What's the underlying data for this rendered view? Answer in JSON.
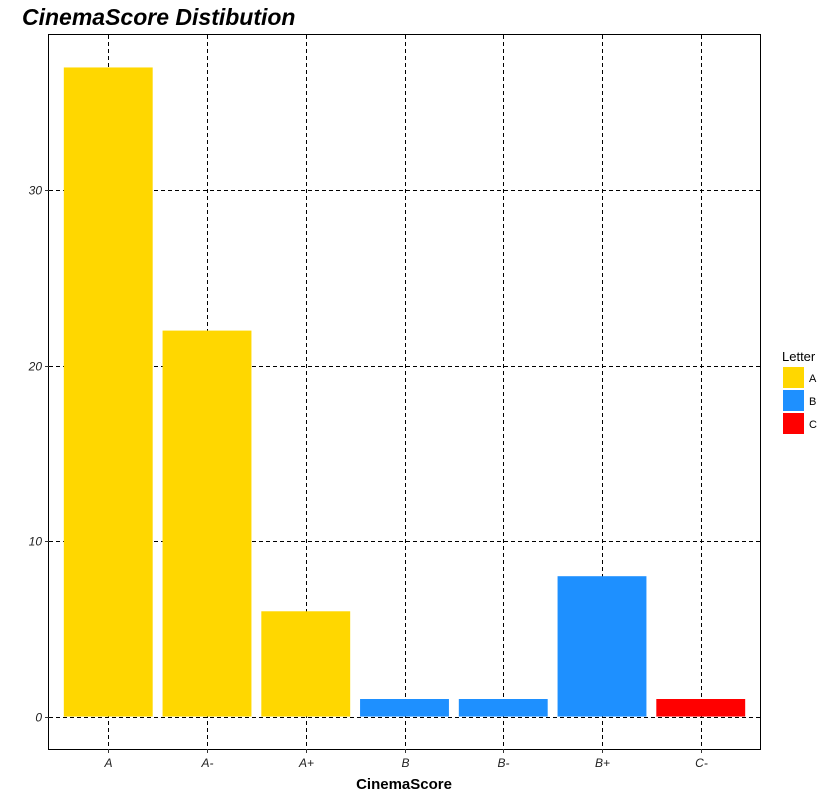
{
  "chart_data": {
    "type": "bar",
    "title": "CinemaScore Distibution",
    "xlabel": "CinemaScore",
    "ylabel": "",
    "categories": [
      "A",
      "A-",
      "A+",
      "B",
      "B-",
      "B+",
      "C-"
    ],
    "values": [
      37,
      22,
      6,
      1,
      1,
      8,
      1
    ],
    "fill_group": [
      "A",
      "A",
      "A",
      "B",
      "B",
      "B",
      "C"
    ],
    "ylim": [
      -1.85,
      38.85
    ],
    "yticks": [
      0,
      10,
      20,
      30
    ],
    "grid": true,
    "legend": {
      "title": "Letter",
      "placement": "right",
      "entries": [
        {
          "label": "A",
          "color": "#FFD700"
        },
        {
          "label": "B",
          "color": "#1E90FF"
        },
        {
          "label": "C",
          "color": "#FF0000"
        }
      ]
    }
  }
}
